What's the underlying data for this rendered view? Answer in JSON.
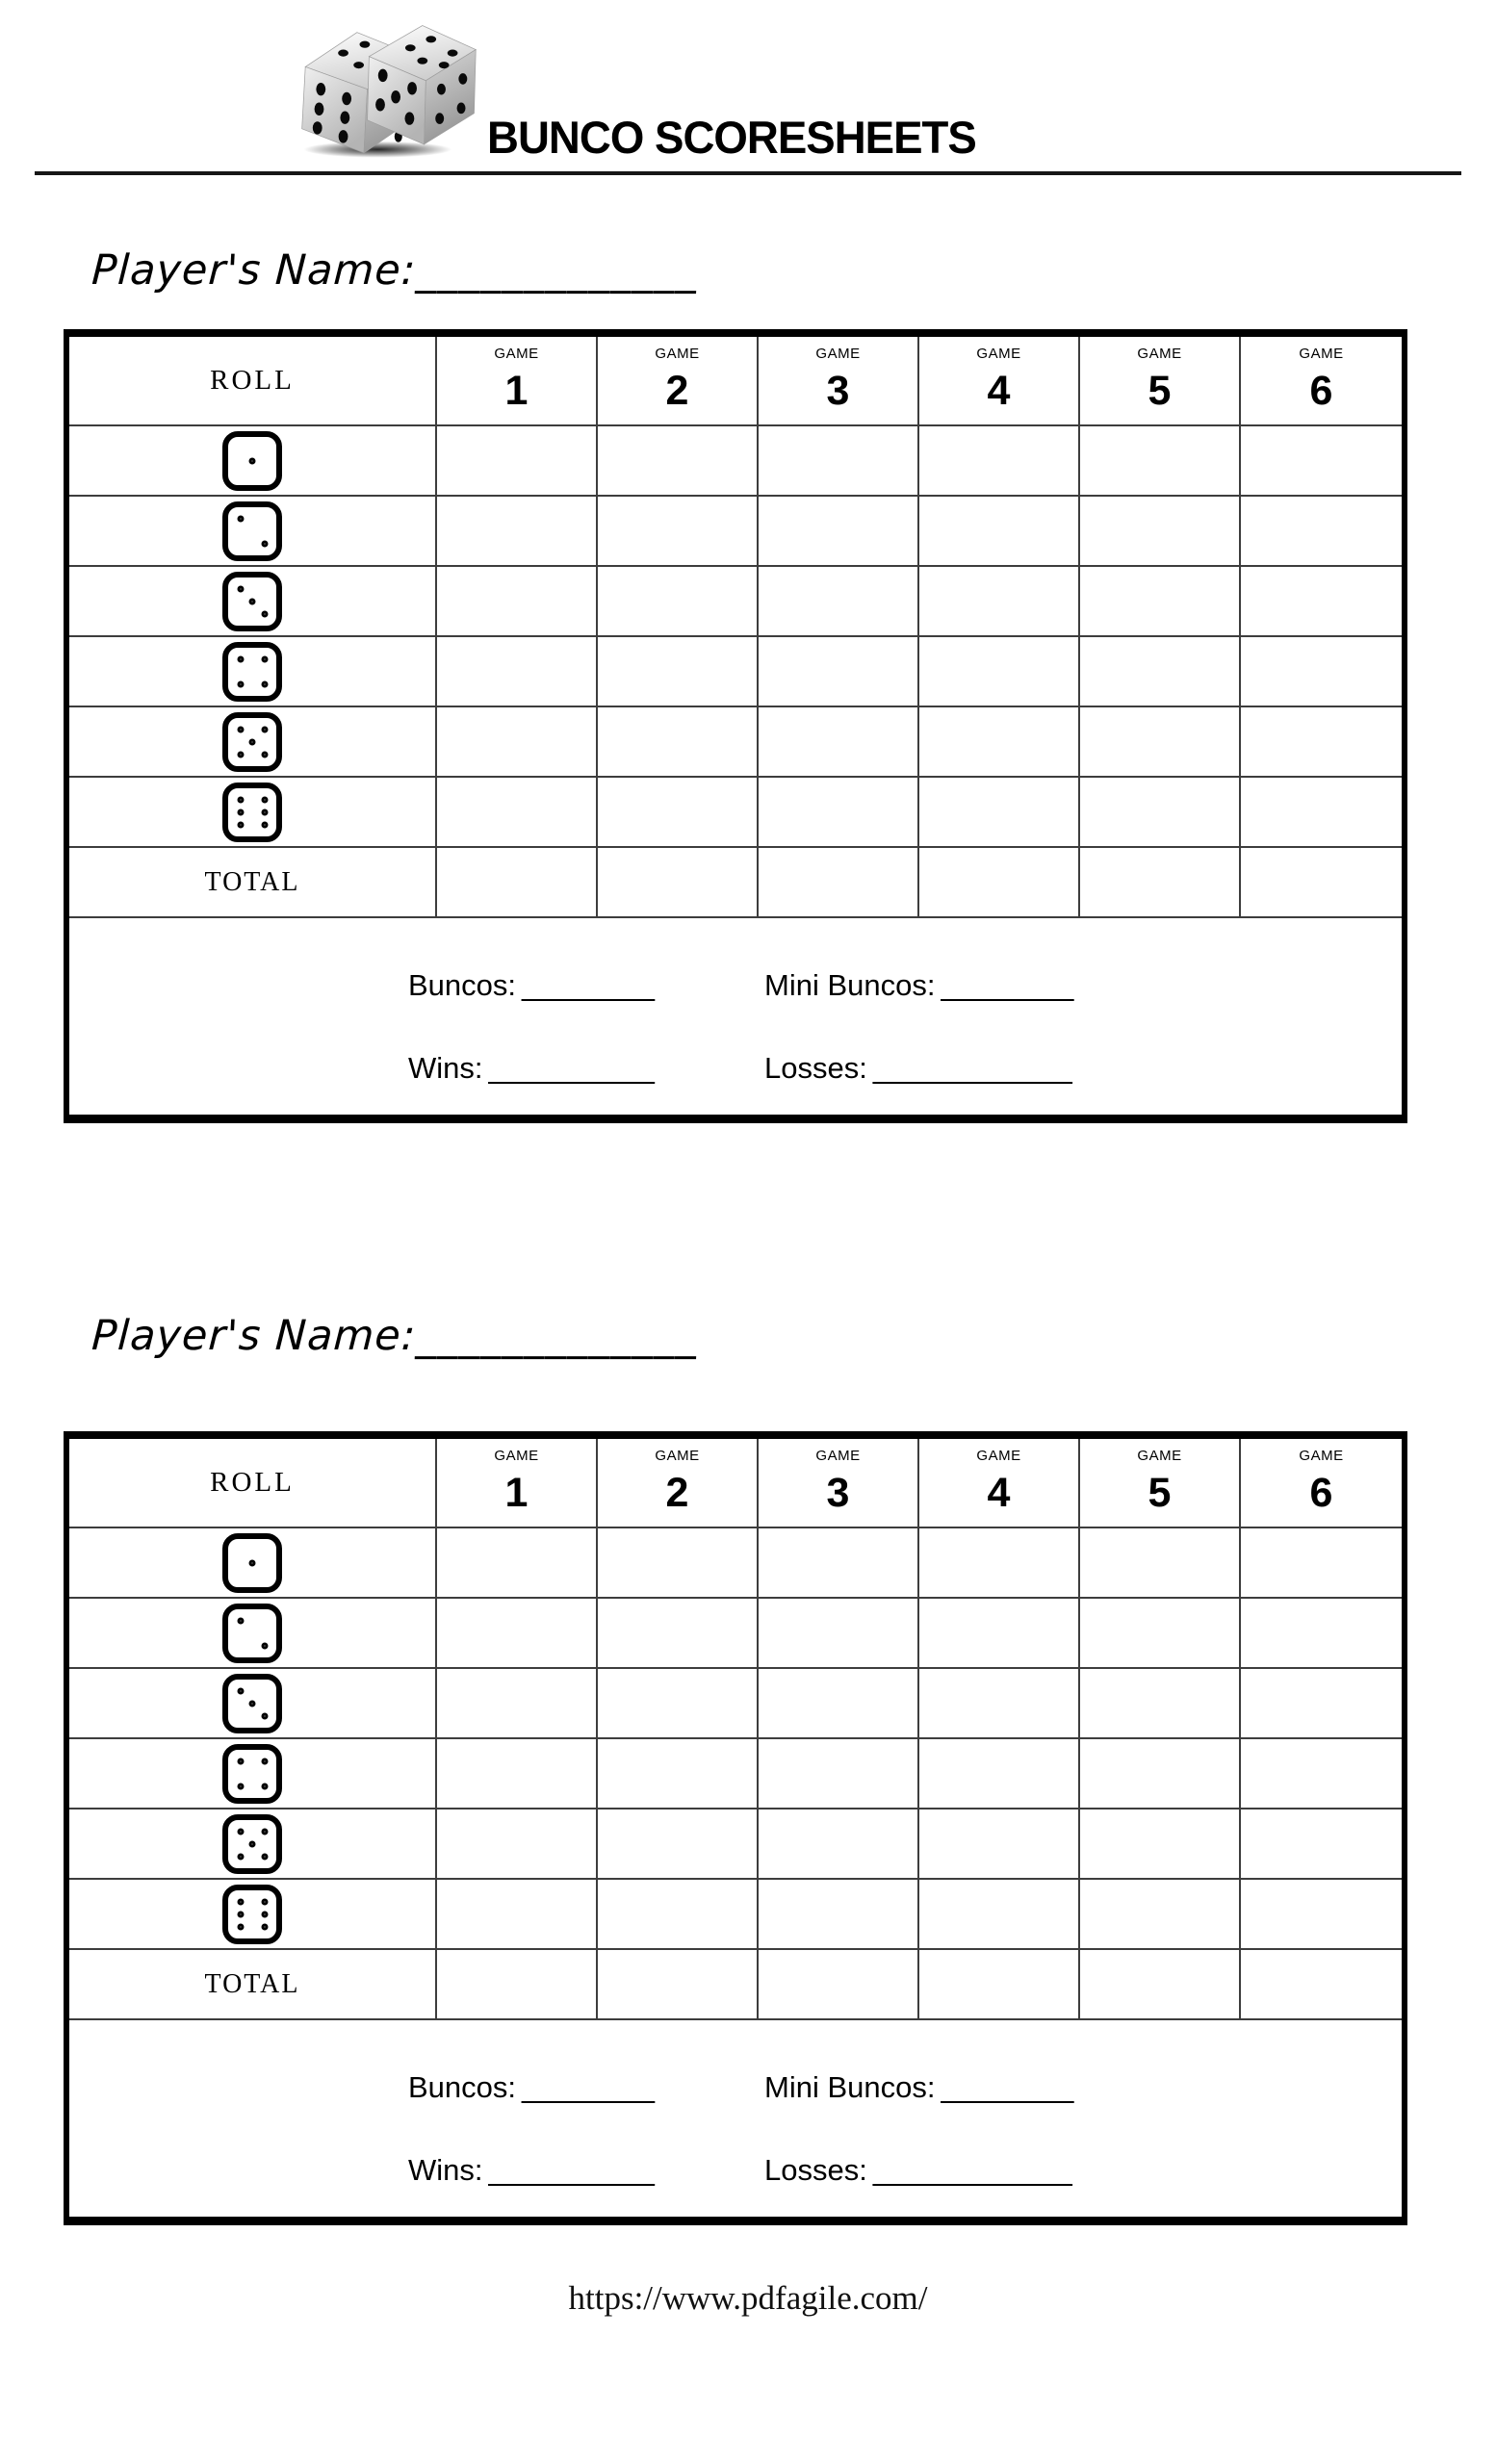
{
  "header": {
    "title": "BUNCO SCORESHEETS",
    "logo_icon": "dice-pair-icon"
  },
  "sheets": [
    {
      "player_label": "Player's Name:",
      "player_blank": "_____________",
      "table": {
        "roll_header": "ROLL",
        "game_label": "GAME",
        "games": [
          "1",
          "2",
          "3",
          "4",
          "5",
          "6"
        ],
        "dice": [
          1,
          2,
          3,
          4,
          5,
          6
        ],
        "total_label": "TOTAL",
        "stats": {
          "buncos_label": "Buncos:",
          "buncos_blank": "________",
          "mini_label": "Mini Buncos:",
          "mini_blank": "________",
          "wins_label": "Wins:",
          "wins_blank": "__________",
          "losses_label": "Losses:",
          "losses_blank": "____________"
        }
      }
    },
    {
      "player_label": "Player's Name:",
      "player_blank": "_____________",
      "table": {
        "roll_header": "ROLL",
        "game_label": "GAME",
        "games": [
          "1",
          "2",
          "3",
          "4",
          "5",
          "6"
        ],
        "dice": [
          1,
          2,
          3,
          4,
          5,
          6
        ],
        "total_label": "TOTAL",
        "stats": {
          "buncos_label": "Buncos:",
          "buncos_blank": "________",
          "mini_label": "Mini Buncos:",
          "mini_blank": "________",
          "wins_label": "Wins:",
          "wins_blank": "__________",
          "losses_label": "Losses:",
          "losses_blank": "____________"
        }
      }
    }
  ],
  "footer": {
    "url": "https://www.pdfagile.com/"
  },
  "colors": {
    "ink": "#000000",
    "grid_line": "#3d3d3d",
    "paper": "#ffffff"
  }
}
